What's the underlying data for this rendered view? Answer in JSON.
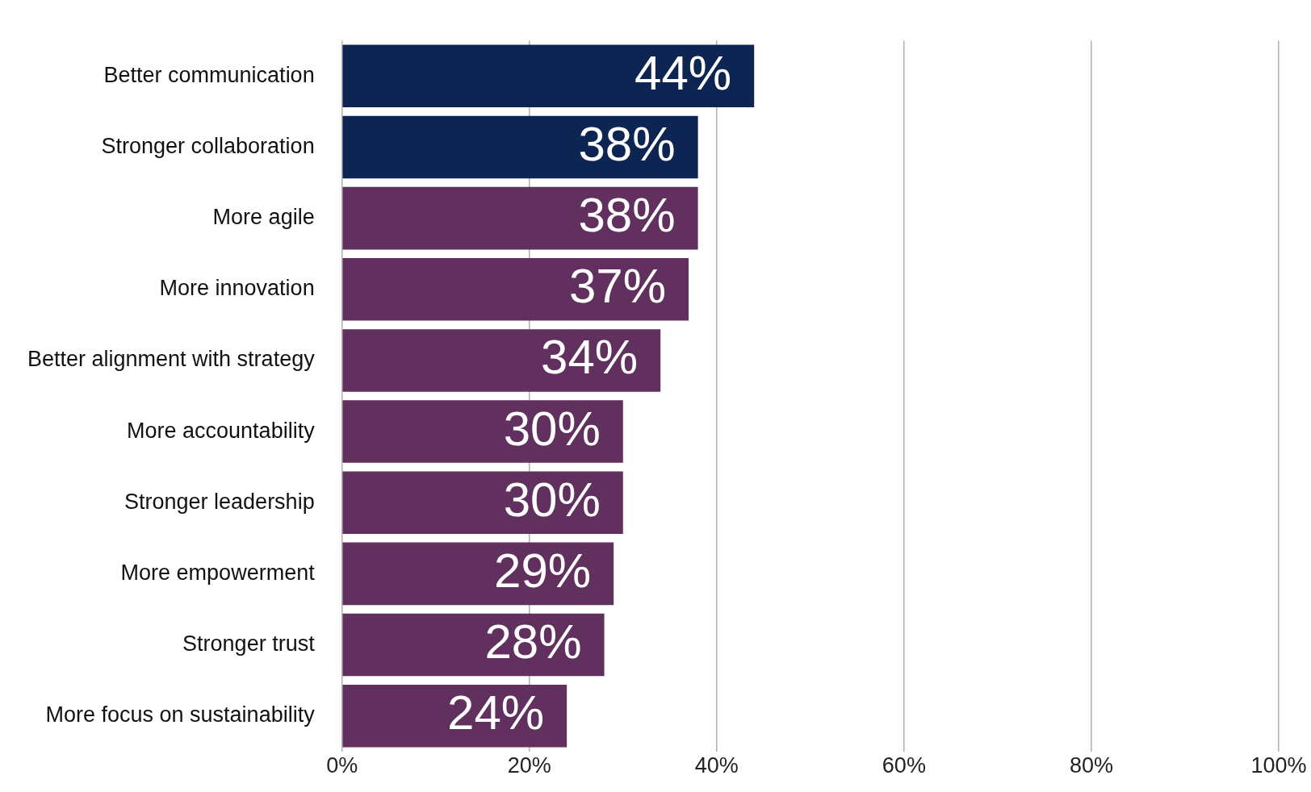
{
  "chart_data": {
    "type": "bar",
    "orientation": "horizontal",
    "categories": [
      "Better communication",
      "Stronger collaboration",
      "More agile",
      "More innovation",
      "Better alignment with strategy",
      "More accountability",
      "Stronger leadership",
      "More empowerment",
      "Stronger trust",
      "More focus on sustainability"
    ],
    "values": [
      44,
      38,
      38,
      37,
      34,
      30,
      30,
      29,
      28,
      24
    ],
    "colors": [
      "#0c2552",
      "#0c2552",
      "#61305e",
      "#61305e",
      "#61305e",
      "#61305e",
      "#61305e",
      "#61305e",
      "#61305e",
      "#61305e"
    ],
    "xlim": [
      0,
      100
    ],
    "xticks": [
      {
        "value": 0,
        "label": "0%"
      },
      {
        "value": 20,
        "label": "20%"
      },
      {
        "value": 40,
        "label": "40%"
      },
      {
        "value": 60,
        "label": "60%"
      },
      {
        "value": 80,
        "label": "80%"
      },
      {
        "value": 100,
        "label": "100%"
      }
    ],
    "value_labels": [
      "44%",
      "38%",
      "38%",
      "37%",
      "34%",
      "30%",
      "30%",
      "29%",
      "28%",
      "24%"
    ],
    "grid": "x",
    "legend": false
  }
}
